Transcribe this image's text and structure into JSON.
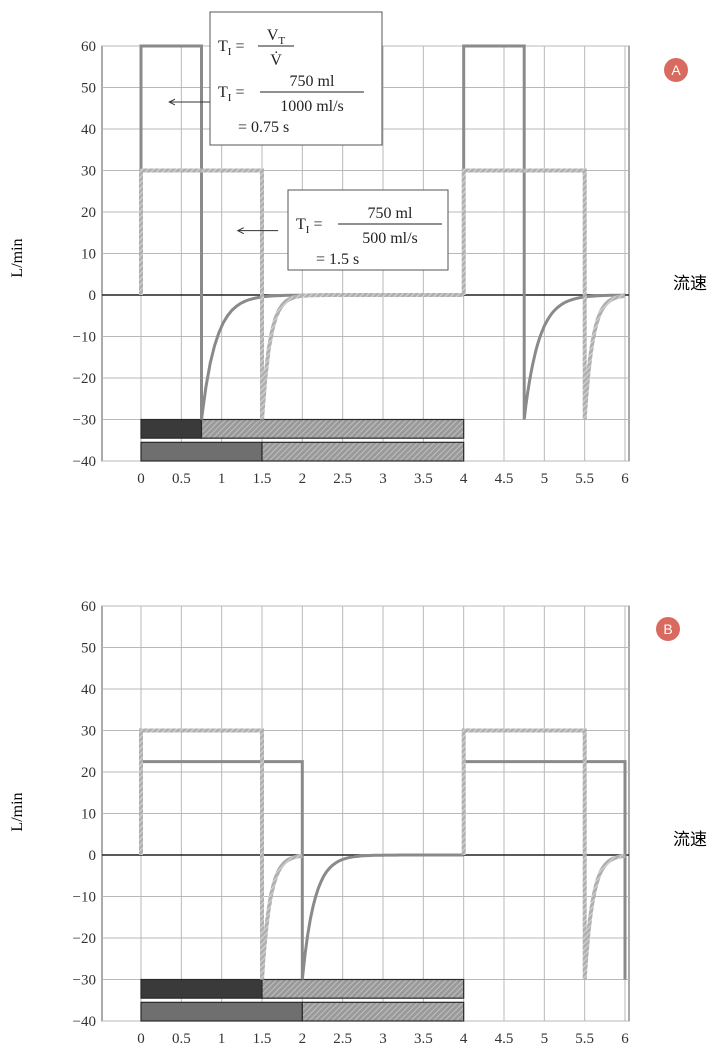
{
  "chart_data": [
    {
      "panel": "A",
      "type": "line",
      "ylabel": "L/min",
      "side_label": "流速",
      "xlim": [
        0,
        6
      ],
      "ylim": [
        -40,
        60
      ],
      "x_ticks": [
        "0",
        "0.5",
        "1",
        "1.5",
        "2",
        "2.5",
        "3",
        "3.5",
        "4",
        "4.5",
        "5",
        "5.5",
        "6"
      ],
      "y_ticks": [
        "60",
        "50",
        "40",
        "30",
        "20",
        "10",
        "0",
        "−10",
        "−20",
        "−30",
        "−40"
      ],
      "series": [
        {
          "style": "solid",
          "color": "#8a8a8a",
          "segments": [
            {
              "kind": "line",
              "points": [
                [
                  0,
                  0
                ],
                [
                  0,
                  60
                ],
                [
                  0.75,
                  60
                ],
                [
                  0.75,
                  -30
                ]
              ]
            },
            {
              "kind": "decay",
              "x0": 0.75,
              "y0": -30,
              "tau": 0.18,
              "x1": 4.0
            },
            {
              "kind": "line",
              "points": [
                [
                  4.0,
                  0
                ],
                [
                  4.0,
                  60
                ],
                [
                  4.75,
                  60
                ],
                [
                  4.75,
                  -30
                ]
              ]
            },
            {
              "kind": "decay",
              "x0": 4.75,
              "y0": -30,
              "tau": 0.18,
              "x1": 6.0
            }
          ]
        },
        {
          "style": "hatched",
          "color": "#b4b4b4",
          "segments": [
            {
              "kind": "line",
              "points": [
                [
                  0,
                  0
                ],
                [
                  0,
                  30
                ],
                [
                  1.5,
                  30
                ],
                [
                  1.5,
                  -30
                ]
              ]
            },
            {
              "kind": "decay",
              "x0": 1.5,
              "y0": -30,
              "tau": 0.1,
              "x1": 4.0
            },
            {
              "kind": "line",
              "points": [
                [
                  4.0,
                  0
                ],
                [
                  4.0,
                  30
                ],
                [
                  5.5,
                  30
                ],
                [
                  5.5,
                  -30
                ]
              ]
            },
            {
              "kind": "decay",
              "x0": 5.5,
              "y0": -30,
              "tau": 0.1,
              "x1": 6.0
            }
          ]
        }
      ],
      "timing_bars": [
        {
          "y_top": -30,
          "y_bottom": -34.5,
          "parts": [
            {
              "from": 0,
              "to": 0.75,
              "fill": "dark"
            },
            {
              "from": 0.75,
              "to": 4.0,
              "fill": "hatched"
            }
          ]
        },
        {
          "y_top": -35.5,
          "y_bottom": -40,
          "parts": [
            {
              "from": 0,
              "to": 1.5,
              "fill": "medium"
            },
            {
              "from": 1.5,
              "to": 4.0,
              "fill": "hatched"
            }
          ]
        }
      ],
      "annotations": [
        {
          "id": "box1",
          "lines": [
            {
              "lhs": "T",
              "lhs_sub": "I",
              "num": "V",
              "num_sub": "T",
              "den": "V̇"
            },
            {
              "lhs": "T",
              "lhs_sub": "I",
              "num": "750 ml",
              "den": "1000 ml/s"
            },
            {
              "text": "= 0.75 s"
            }
          ],
          "arrow_from": [
            0.85,
            46.5
          ],
          "arrow_to": [
            0.35,
            46.5
          ]
        },
        {
          "id": "box2",
          "lines": [
            {
              "lhs": "T",
              "lhs_sub": "I",
              "num": "750 ml",
              "den": "500 ml/s"
            },
            {
              "text": "= 1.5 s"
            }
          ],
          "arrow_from": [
            1.7,
            15.5
          ],
          "arrow_to": [
            1.2,
            15.5
          ]
        }
      ],
      "badge": "A"
    },
    {
      "panel": "B",
      "type": "line",
      "ylabel": "L/min",
      "side_label": "流速",
      "xlim": [
        0,
        6
      ],
      "ylim": [
        -40,
        60
      ],
      "x_ticks": [
        "0",
        "0.5",
        "1",
        "1.5",
        "2",
        "2.5",
        "3",
        "3.5",
        "4",
        "4.5",
        "5",
        "5.5",
        "6"
      ],
      "y_ticks": [
        "60",
        "50",
        "40",
        "30",
        "20",
        "10",
        "0",
        "−10",
        "−20",
        "−30",
        "−40"
      ],
      "series": [
        {
          "style": "solid",
          "color": "#8a8a8a",
          "segments": [
            {
              "kind": "line",
              "points": [
                [
                  0,
                  0
                ],
                [
                  0,
                  22.5
                ],
                [
                  2.0,
                  22.5
                ],
                [
                  2.0,
                  -30
                ]
              ]
            },
            {
              "kind": "decay",
              "x0": 2.0,
              "y0": -30,
              "tau": 0.15,
              "x1": 4.0
            },
            {
              "kind": "line",
              "points": [
                [
                  4.0,
                  0
                ],
                [
                  4.0,
                  22.5
                ],
                [
                  6.0,
                  22.5
                ],
                [
                  6.0,
                  -30
                ]
              ]
            }
          ]
        },
        {
          "style": "hatched",
          "color": "#b4b4b4",
          "segments": [
            {
              "kind": "line",
              "points": [
                [
                  0,
                  0
                ],
                [
                  0,
                  30
                ],
                [
                  1.5,
                  30
                ],
                [
                  1.5,
                  -30
                ]
              ]
            },
            {
              "kind": "decay",
              "x0": 1.5,
              "y0": -30,
              "tau": 0.1,
              "x1": 2.0
            },
            {
              "kind": "line",
              "points": [
                [
                  4.0,
                  0
                ],
                [
                  4.0,
                  30
                ],
                [
                  5.5,
                  30
                ],
                [
                  5.5,
                  -30
                ]
              ]
            },
            {
              "kind": "decay",
              "x0": 5.5,
              "y0": -30,
              "tau": 0.1,
              "x1": 6.0
            }
          ]
        }
      ],
      "timing_bars": [
        {
          "y_top": -30,
          "y_bottom": -34.5,
          "parts": [
            {
              "from": 0,
              "to": 1.5,
              "fill": "dark"
            },
            {
              "from": 1.5,
              "to": 4.0,
              "fill": "hatched"
            }
          ]
        },
        {
          "y_top": -35.5,
          "y_bottom": -40,
          "parts": [
            {
              "from": 0,
              "to": 2.0,
              "fill": "medium"
            },
            {
              "from": 2.0,
              "to": 4.0,
              "fill": "hatched"
            }
          ]
        }
      ],
      "annotations": [],
      "badge": "B"
    }
  ],
  "colors": {
    "grid": "#b8b8b8",
    "axis": "#555555",
    "zero_line": "#222222",
    "bar_dark": "#3a3a3a",
    "bar_medium": "#6f6f6f",
    "bar_hatched_bg": "#9a9a9a",
    "bar_hatched_fg": "#c8c8c8",
    "badge_fill": "#d86a60"
  }
}
